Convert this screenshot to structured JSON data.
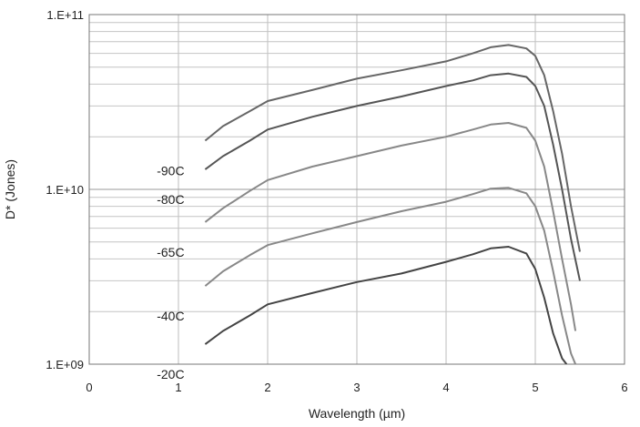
{
  "chart_data": {
    "type": "line",
    "xlabel": "Wavelength (µm)",
    "ylabel": "D* (Jones)",
    "xlim": [
      0,
      6
    ],
    "ylim": [
      1000000000,
      100000000000
    ],
    "yscale": "log",
    "grid": true,
    "x_ticks": [
      "0",
      "1",
      "2",
      "3",
      "4",
      "5",
      "6"
    ],
    "y_ticks": [
      "1.E+09",
      "1.E+10",
      "1.E+11"
    ],
    "series_color": "#555555",
    "series": [
      {
        "name": "-90C",
        "color": "#666666",
        "x": [
          1.3,
          1.5,
          1.8,
          2.0,
          2.5,
          3.0,
          3.5,
          4.0,
          4.3,
          4.5,
          4.7,
          4.9,
          5.0,
          5.1,
          5.2,
          5.3,
          5.4,
          5.5
        ],
        "y": [
          19000000000,
          23000000000,
          28000000000,
          32000000000,
          37000000000,
          43000000000,
          48000000000,
          54000000000,
          60000000000,
          65000000000,
          67000000000,
          64000000000,
          58000000000,
          45000000000,
          28000000000,
          16000000000,
          8000000000,
          4400000000
        ]
      },
      {
        "name": "-80C",
        "color": "#555555",
        "x": [
          1.3,
          1.5,
          1.8,
          2.0,
          2.5,
          3.0,
          3.5,
          4.0,
          4.3,
          4.5,
          4.7,
          4.9,
          5.0,
          5.1,
          5.2,
          5.3,
          5.4,
          5.5
        ],
        "y": [
          13000000000,
          15500000000,
          19000000000,
          22000000000,
          26000000000,
          30000000000,
          34000000000,
          39000000000,
          42000000000,
          45000000000,
          46000000000,
          44000000000,
          39000000000,
          30000000000,
          18000000000,
          10000000000,
          5200000000,
          3000000000
        ]
      },
      {
        "name": "-65C",
        "color": "#888888",
        "x": [
          1.3,
          1.5,
          1.8,
          2.0,
          2.5,
          3.0,
          3.5,
          4.0,
          4.3,
          4.5,
          4.7,
          4.9,
          5.0,
          5.1,
          5.2,
          5.3,
          5.4,
          5.45
        ],
        "y": [
          6500000000,
          7800000000,
          9800000000,
          11300000000,
          13500000000,
          15500000000,
          17800000000,
          20000000000,
          22000000000,
          23500000000,
          24000000000,
          22500000000,
          19000000000,
          13500000000,
          7500000000,
          4000000000,
          2200000000,
          1550000000
        ]
      },
      {
        "name": "-40C",
        "color": "#888888",
        "x": [
          1.3,
          1.5,
          1.8,
          2.0,
          2.5,
          3.0,
          3.5,
          4.0,
          4.3,
          4.5,
          4.7,
          4.9,
          5.0,
          5.1,
          5.2,
          5.3,
          5.4,
          5.45
        ],
        "y": [
          2800000000,
          3400000000,
          4200000000,
          4800000000,
          5600000000,
          6500000000,
          7500000000,
          8500000000,
          9400000000,
          10100000000,
          10200000000,
          9500000000,
          8000000000,
          5800000000,
          3400000000,
          1900000000,
          1150000000,
          1000000000
        ]
      },
      {
        "name": "-20C",
        "color": "#444444",
        "x": [
          1.3,
          1.5,
          1.8,
          2.0,
          2.5,
          3.0,
          3.5,
          4.0,
          4.3,
          4.5,
          4.7,
          4.9,
          5.0,
          5.1,
          5.2,
          5.3,
          5.35
        ],
        "y": [
          1300000000,
          1550000000,
          1900000000,
          2200000000,
          2550000000,
          2950000000,
          3300000000,
          3850000000,
          4250000000,
          4600000000,
          4700000000,
          4300000000,
          3500000000,
          2400000000,
          1500000000,
          1080000000,
          1000000000
        ]
      }
    ]
  }
}
